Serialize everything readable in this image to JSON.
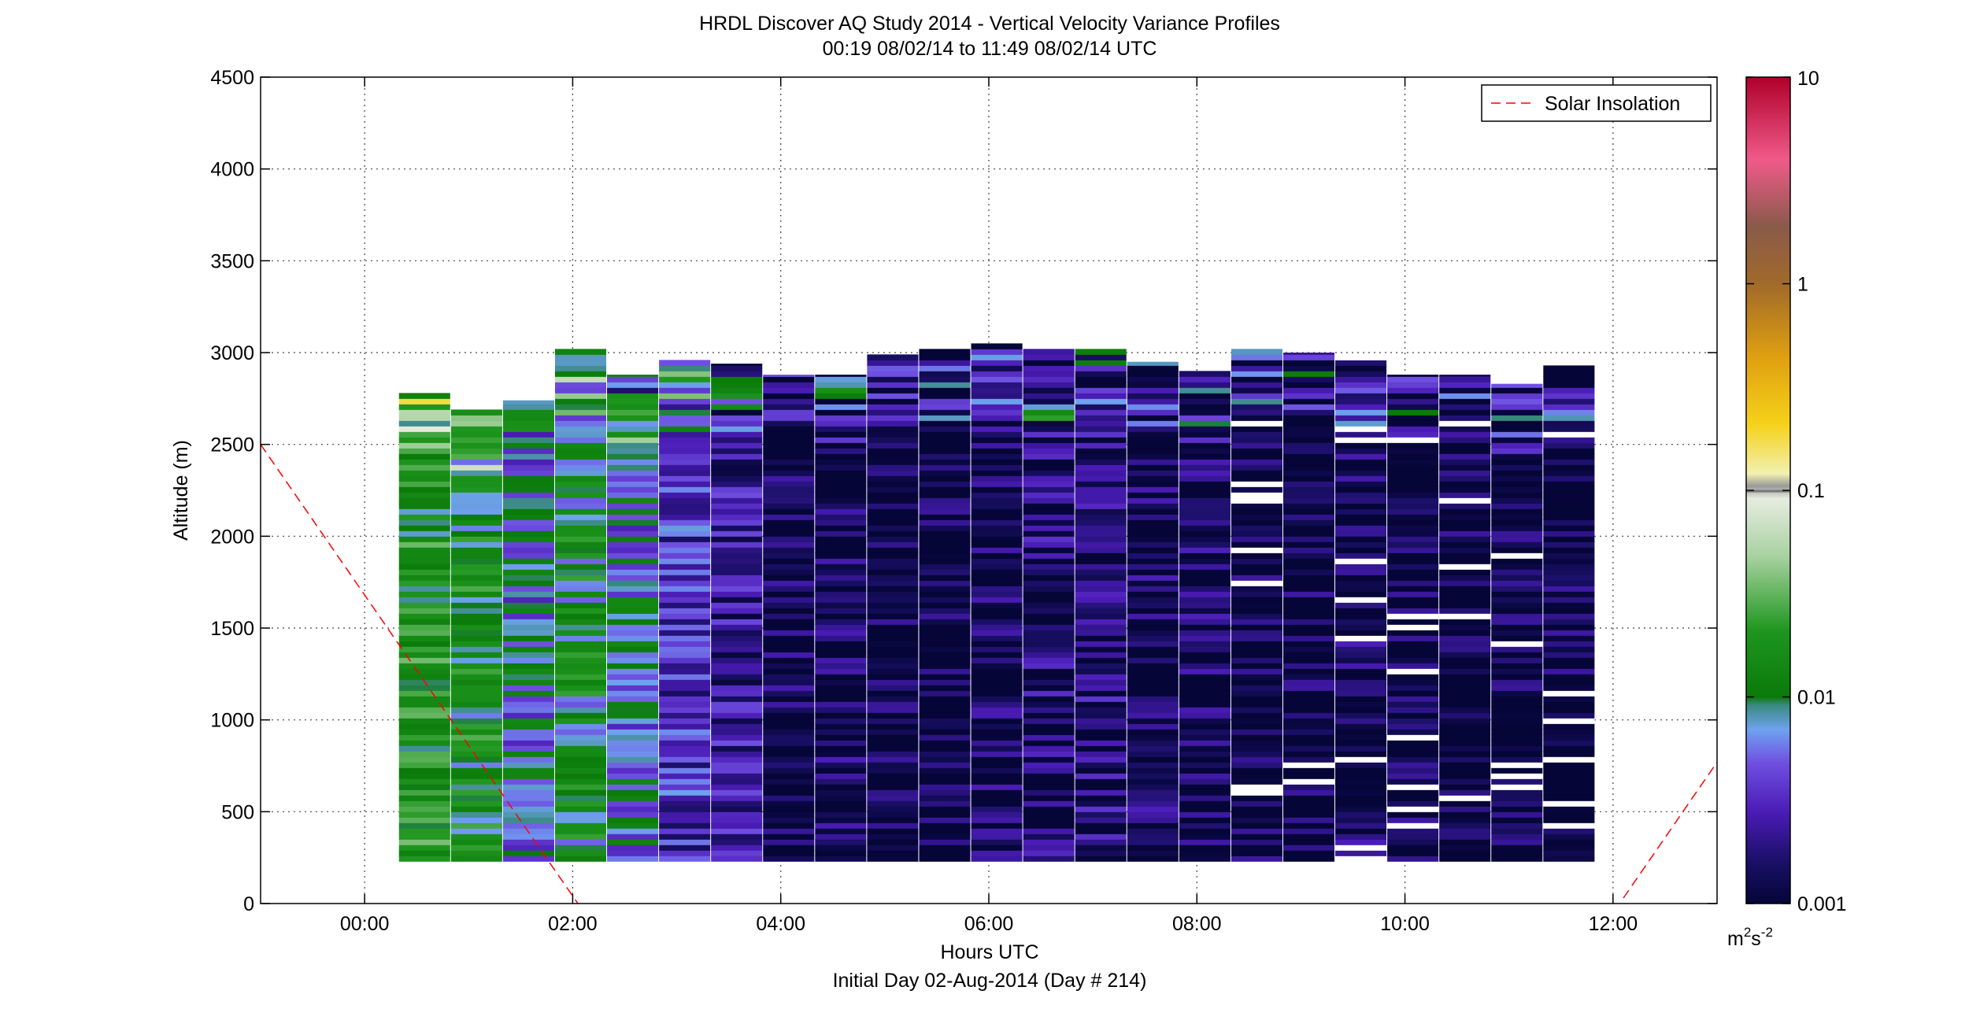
{
  "chart_data": {
    "type": "heatmap",
    "title": "HRDL Discover AQ Study 2014 - Vertical Velocity Variance Profiles",
    "subtitle": "00:19 08/02/14 to 11:49 08/02/14  UTC",
    "xlabel": "Hours UTC",
    "xlabel2": "Initial Day 02-Aug-2014 (Day # 214)",
    "ylabel": "Altitude (m)",
    "x_range_hours": [
      -1.0,
      13.0
    ],
    "y_range_m": [
      0,
      4500
    ],
    "x_ticks": [
      0,
      2,
      4,
      6,
      8,
      10,
      12
    ],
    "x_tick_labels": [
      "00:00",
      "02:00",
      "04:00",
      "06:00",
      "08:00",
      "10:00",
      "12:00"
    ],
    "y_ticks": [
      0,
      500,
      1000,
      1500,
      2000,
      2500,
      3000,
      3500,
      4000,
      4500
    ],
    "y_tick_labels": [
      "0",
      "500",
      "1000",
      "1500",
      "2000",
      "2500",
      "3000",
      "3500",
      "4000",
      "4500"
    ],
    "grid": true,
    "colorbar": {
      "scale": "log",
      "range": [
        0.001,
        10
      ],
      "tick_values": [
        0.001,
        0.01,
        0.1,
        1,
        10
      ],
      "tick_labels": [
        "0.001",
        "0.01",
        "0.1",
        "1",
        "10"
      ],
      "unit_label": "m",
      "unit_exponent_1": "2",
      "unit_mid": "s",
      "unit_exponent_2": "-2"
    },
    "legend": {
      "label": "Solar Insolation",
      "position": "top-right",
      "style": "red dashed line"
    },
    "solar_insolation": [
      {
        "segment": "left",
        "points": [
          [
            -1.0,
            2500
          ],
          [
            2.05,
            0
          ]
        ]
      },
      {
        "segment": "right",
        "points": [
          [
            12.1,
            30
          ],
          [
            13.0,
            770
          ]
        ]
      }
    ],
    "profiles": {
      "start_hours": [
        0.33,
        0.83,
        1.33,
        1.83,
        2.33,
        2.83,
        3.33,
        3.83,
        4.33,
        4.83,
        5.33,
        5.83,
        6.33,
        6.83,
        7.33,
        7.83,
        8.33,
        8.83,
        9.33,
        9.83,
        10.33,
        10.83,
        11.33
      ],
      "width_hours": 0.5,
      "bottom_m": 230,
      "top_m": [
        2780,
        2690,
        2740,
        3020,
        2880,
        2960,
        2940,
        2880,
        2880,
        2990,
        3020,
        3050,
        3020,
        3020,
        2950,
        2900,
        3020,
        3000,
        2970,
        2880,
        2880,
        2830,
        2930
      ],
      "dominant_variance_m2s2": [
        0.015,
        0.012,
        0.006,
        0.01,
        0.006,
        0.003,
        0.002,
        0.0012,
        0.0012,
        0.001,
        0.001,
        0.0012,
        0.0015,
        0.0015,
        0.0012,
        0.0012,
        0.001,
        0.001,
        0.0012,
        0.001,
        0.001,
        0.001,
        0.001
      ]
    }
  }
}
